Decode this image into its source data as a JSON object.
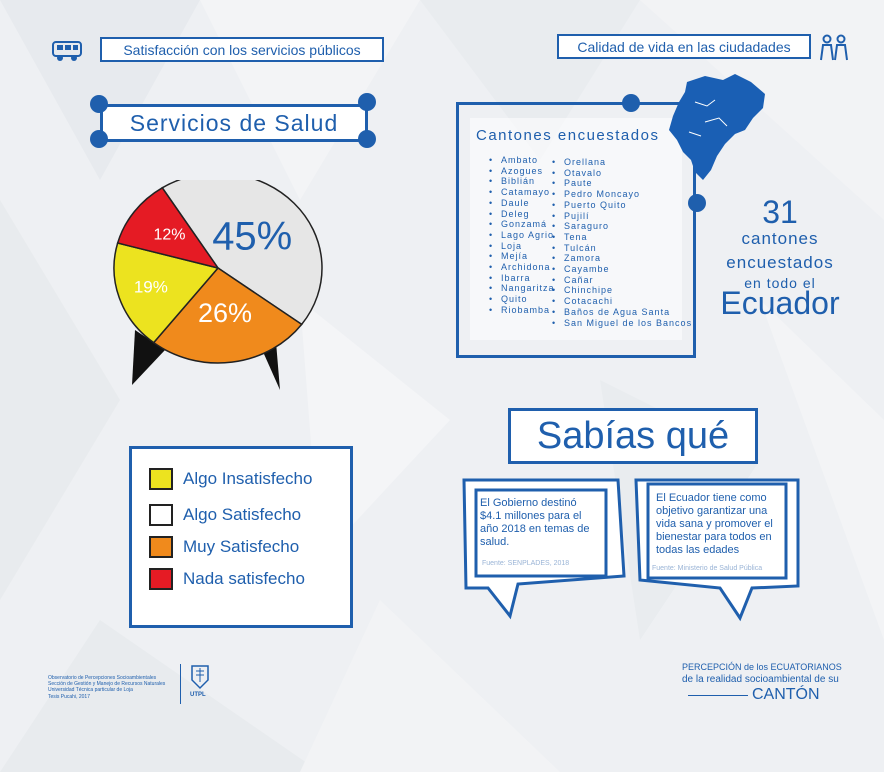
{
  "header": {
    "left_title": "Satisfacción con los servicios públicos",
    "right_title": "Calidad de vida en las ciudadades",
    "left_icon": "bus-icon",
    "right_icon": "people-icon"
  },
  "salud": {
    "title": "Servicios de Salud",
    "slices": [
      {
        "name": "Algo Satisfecho",
        "value": 45,
        "label": "45%",
        "color": "#e6e6e6"
      },
      {
        "name": "Muy Satisfecho",
        "value": 26,
        "label": "26%",
        "color": "#f08a1c"
      },
      {
        "name": "Algo Insatisfecho",
        "value": 19,
        "label": "19%",
        "color": "#ece31f"
      },
      {
        "name": "Nada satisfecho",
        "value": 12,
        "label": "12%",
        "color": "#e51b24"
      }
    ]
  },
  "legend": [
    {
      "label": "Algo Insatisfecho",
      "color": "#ece31f"
    },
    {
      "label": "Algo Satisfecho",
      "color": "#ffffff"
    },
    {
      "label": "Muy Satisfecho",
      "color": "#f08a1c"
    },
    {
      "label": "Nada satisfecho",
      "color": "#e51b24"
    }
  ],
  "cantones": {
    "title": "Cantones encuestados",
    "col1": [
      "Ambato",
      "Azogues",
      "Biblián",
      "Catamayo",
      "Daule",
      "Deleg",
      "Gonzamá",
      "Lago Agrio",
      "Loja",
      "Mejía",
      "Archidona",
      "Ibarra",
      "Nangaritza",
      "Quito",
      "Riobamba"
    ],
    "col2": [
      "Orellana",
      "Otavalo",
      "Paute",
      "Pedro Moncayo",
      "Puerto Quito",
      "Pujilí",
      "Saraguro",
      "Tena",
      "Tulcán",
      "Zamora",
      "Cayambe",
      "Cañar",
      "Chinchipe",
      "Cotacachi",
      "Baños de Agua Santa",
      "San Miguel de los Bancos"
    ]
  },
  "summary": {
    "number": "31",
    "line1": "cantones",
    "line2": "encuestados",
    "line3": "en todo el",
    "country": "Ecuador"
  },
  "sabias": {
    "title": "Sabías qué",
    "bubble1": {
      "text": "El Gobierno destinó $4.1 millones para el año 2018 en temas de salud.",
      "source": "Fuente: SENPLADES, 2018"
    },
    "bubble2": {
      "text": "El Ecuador tiene como objetivo garantizar una vida sana y promover el bienestar para todos en todas las edades",
      "source": "Fuente: Ministerio de Salud Pública"
    }
  },
  "footer": {
    "left_lines": [
      "Observatorio de Percepciones Socioambientales",
      "Sección de Gestión y Manejo de Recursos Naturales",
      "Universidad Técnica particular de Loja",
      "Tesis Pucahi, 2017"
    ],
    "logo_text": "UTPL",
    "right_line1": "PERCEPCIÓN de los ECUATORIANOS",
    "right_line2": "de la realidad socioambiental de su",
    "right_line3": "CANTÓN"
  }
}
